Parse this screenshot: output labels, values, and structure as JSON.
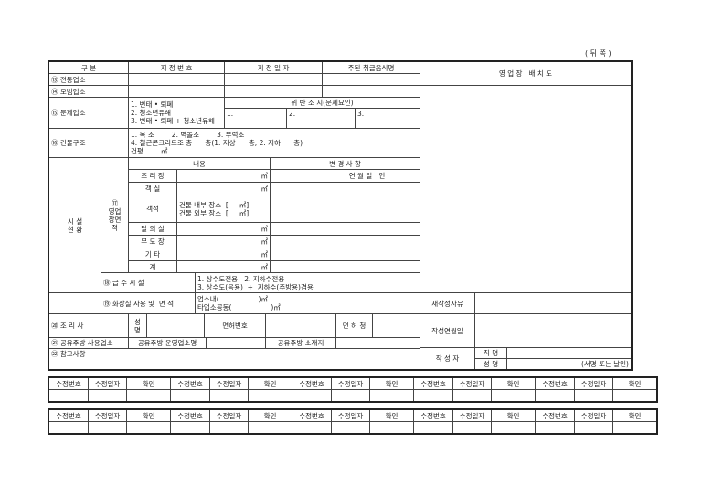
{
  "page_label": "( 뒤 쪽 )",
  "header": {
    "gubun": "구 분",
    "designation_no": "지 정 번 호",
    "designation_date": "지 정 일 자",
    "main_food": "주된 취급음식명"
  },
  "r13": {
    "label": "⑬ 전통업소"
  },
  "r14": {
    "label": "⑭ 모범업소"
  },
  "r15": {
    "label": "⑮ 문제업소",
    "options": "1. 변태 • 퇴폐\n2. 청소년유해\n3. 변태 • 퇴폐 + 청소년유해",
    "violation_header": "위 반 소 지(문제요인)",
    "v1": "1.",
    "v2": "2.",
    "v3": "3."
  },
  "r16": {
    "label": "⑯ 건물구조",
    "text": "1. 목 조        2. 벽돌조        3. 부럭조\n4. 철근콘크리트조 층      층(1. 지상      층, 2. 지하      층)\n건평        ㎡"
  },
  "facility": {
    "label": "시 설\n현 황",
    "area_label": "⑰\n영업\n장면\n적",
    "content_header": "내용",
    "change_header": "변 경 사 항",
    "date_seal": "연 월 일   인",
    "items": [
      {
        "name": "조 리 장",
        "unit": "㎡"
      },
      {
        "name": "객 실",
        "unit": "㎡"
      },
      {
        "name": "객석",
        "unit": "건물 내부 장소  [     ㎡]\n건물 외부 장소  [     ㎡]"
      },
      {
        "name": "탈 의 실",
        "unit": "㎡"
      },
      {
        "name": "무 도 장",
        "unit": "㎡"
      },
      {
        "name": "기 타",
        "unit": "㎡"
      },
      {
        "name": "계",
        "unit": "㎡"
      }
    ]
  },
  "r18": {
    "label": "⑱ 급 수 시 설",
    "text": "1. 상수도전용   2. 지하수전용\n3. 상수도(음용)  +  지하수(주방용)겸용"
  },
  "r19": {
    "label": "⑲ 화장실 사용 및  면 적",
    "text": "업소내(                  )㎡\n타업소공동(                  )㎡"
  },
  "r20": {
    "label": "⑳ 조 리 사",
    "name": "성\n명",
    "license_no": "면허번호",
    "license_office": "면 허 청"
  },
  "r21": {
    "label": "㉑ 공유주방 사용업소",
    "operator": "공유주방 운영업소명",
    "location": "공유주방 소재지"
  },
  "r22": {
    "label": "㉒ 참고사항"
  },
  "right": {
    "layout_title": "영 업 장   배 치 도",
    "rewrite_reason": "재작성사유",
    "written_date": "작성연월일",
    "writer": "작 성 자",
    "position": "직 명",
    "name": "성 명",
    "sign": "(서명 또는 날인)"
  },
  "revision": {
    "no": "수정번호",
    "date": "수정일자",
    "confirm": "확인"
  }
}
